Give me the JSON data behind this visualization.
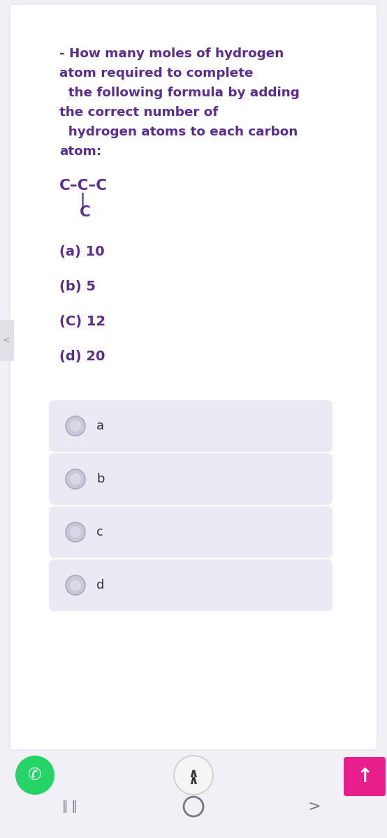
{
  "bg_color": "#f0f0f5",
  "card_bg": "#ffffff",
  "option_bg": "#eaeaf4",
  "question_color": "#5b2d8e",
  "option_label_color": "#333344",
  "formula_color": "#5b2d8e",
  "question_lines": [
    "- How many moles of hydrogen",
    "atom required to complete",
    "  the following formula by adding",
    "the correct number of",
    "  hydrogen atoms to each carbon",
    "atom:"
  ],
  "formula_line1": "C–C–C",
  "formula_pipe": "|",
  "formula_line3": "C",
  "options": [
    "(a) 10",
    "(b) 5",
    "(C) 12",
    "(d) 20"
  ],
  "option_labels": [
    "a",
    "b",
    "c",
    "d"
  ],
  "whatsapp_color": "#25d366",
  "up_button_color": "#e91e8c",
  "nav_color": "#777788",
  "radio_outer_color": "#c8c8d8",
  "radio_border_color": "#aaaabc",
  "radio_inner_color": "#d8d8e8"
}
